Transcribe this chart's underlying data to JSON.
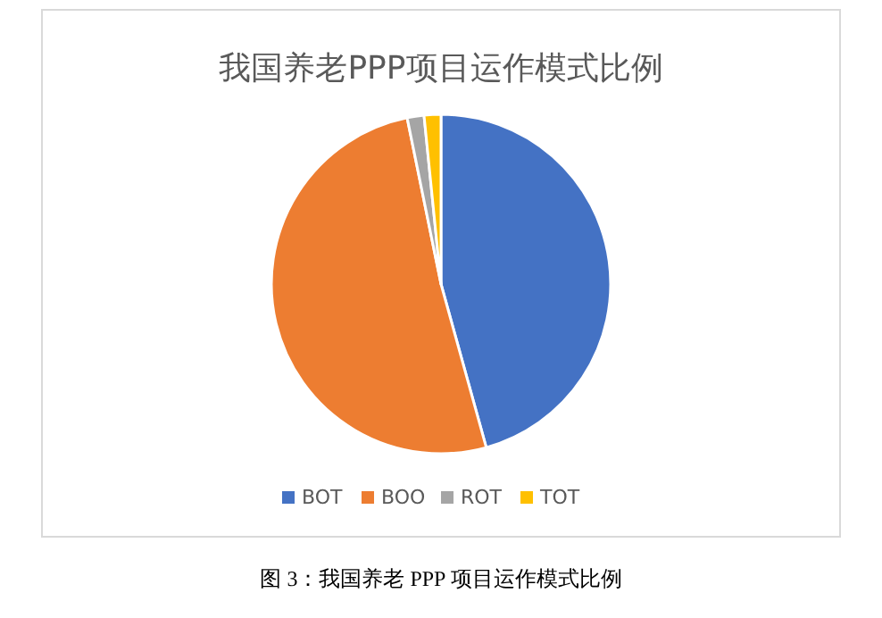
{
  "chart_data": {
    "type": "pie",
    "title": "我国养老PPP项目运作模式比例",
    "categories": [
      "BOT",
      "BOO",
      "ROT",
      "TOT"
    ],
    "values": [
      45.7,
      51.1,
      1.6,
      1.6
    ],
    "colors": [
      "#4472c4",
      "#ed7d31",
      "#a5a5a5",
      "#ffc000"
    ],
    "legend": "bottom",
    "annotations": [
      "图 3：我国养老 PPP 项目运作模式比例"
    ]
  }
}
